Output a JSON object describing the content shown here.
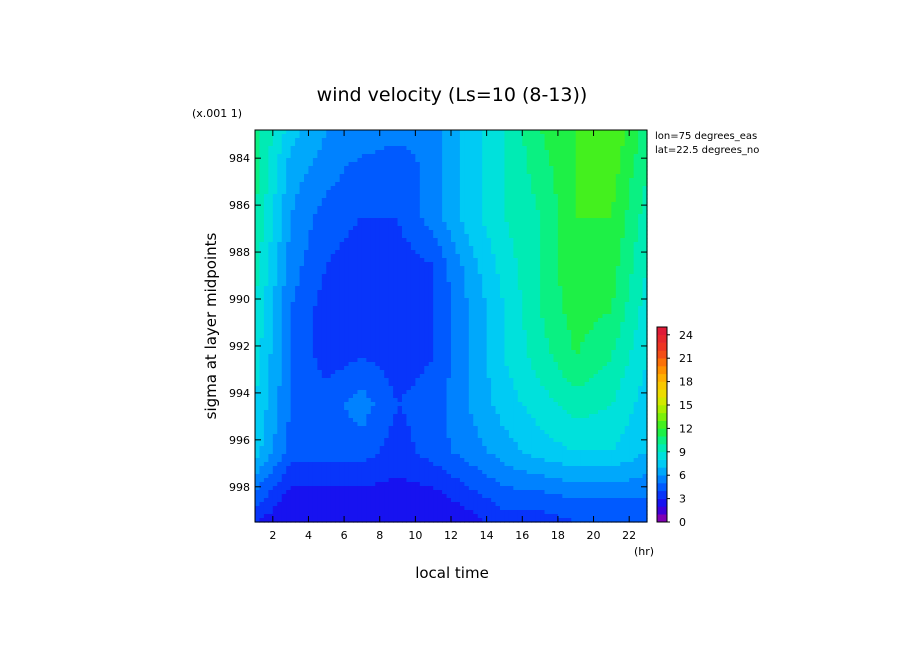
{
  "chart_data": {
    "type": "heatmap",
    "title": "wind velocity (Ls=10 (8-13))",
    "xlabel": "local time",
    "ylabel": "sigma at layer midpoints",
    "x_unit": "(hr)",
    "y_scale_note": "(x.001 1)",
    "annotations": [
      "lon=75 degrees_eas",
      "lat=22.5 degrees_no"
    ],
    "xlim": [
      1,
      23
    ],
    "ylim": [
      999.5,
      982.8
    ],
    "x_ticks": [
      2,
      4,
      6,
      8,
      10,
      12,
      14,
      16,
      18,
      20,
      22
    ],
    "y_ticks": [
      984,
      986,
      988,
      990,
      992,
      994,
      996,
      998
    ],
    "x_tick_labels": [
      "2",
      "4",
      "6",
      "8",
      "10",
      "12",
      "14",
      "16",
      "18",
      "20",
      "22"
    ],
    "y_tick_labels": [
      "984",
      "986",
      "988",
      "990",
      "992",
      "994",
      "996",
      "998"
    ],
    "colorbar": {
      "min": 0,
      "max": 25,
      "step": 1,
      "tick_values": [
        0,
        3,
        6,
        9,
        12,
        15,
        18,
        21,
        24
      ],
      "tick_labels": [
        "0",
        "3",
        "6",
        "9",
        "12",
        "15",
        "18",
        "21",
        "24"
      ]
    },
    "grid_x": [
      1,
      3,
      5,
      7,
      9,
      11,
      13,
      15,
      17,
      19,
      21,
      23
    ],
    "grid_y": [
      982.8,
      984.5,
      986.5,
      988.5,
      990.5,
      992.5,
      994.5,
      996.5,
      997.5,
      998.5,
      999.5
    ],
    "z": [
      [
        10.5,
        7.5,
        6.0,
        6.0,
        5.5,
        5.5,
        7.5,
        9.0,
        11.0,
        12.0,
        13.0,
        10.5
      ],
      [
        10.5,
        6.5,
        5.5,
        4.5,
        4.0,
        5.5,
        7.5,
        9.0,
        10.5,
        12.0,
        12.5,
        10.0
      ],
      [
        10.0,
        6.0,
        4.5,
        4.0,
        4.0,
        5.5,
        7.5,
        9.0,
        10.0,
        12.0,
        12.0,
        9.5
      ],
      [
        9.5,
        5.5,
        4.0,
        3.5,
        3.5,
        4.0,
        6.5,
        8.5,
        10.0,
        12.0,
        11.5,
        9.0
      ],
      [
        9.0,
        5.0,
        3.5,
        3.2,
        3.0,
        4.0,
        6.0,
        8.0,
        10.0,
        11.5,
        11.0,
        8.5
      ],
      [
        8.5,
        5.0,
        3.5,
        4.0,
        3.5,
        4.0,
        6.0,
        8.0,
        9.5,
        11.0,
        10.0,
        8.0
      ],
      [
        8.0,
        5.0,
        4.5,
        5.5,
        4.0,
        4.5,
        6.0,
        7.5,
        8.5,
        9.5,
        9.0,
        7.5
      ],
      [
        7.5,
        4.5,
        4.5,
        4.5,
        3.5,
        4.5,
        5.5,
        6.5,
        7.5,
        8.0,
        8.0,
        7.0
      ],
      [
        6.0,
        3.5,
        3.5,
        3.5,
        3.0,
        3.5,
        4.5,
        5.5,
        6.0,
        6.5,
        6.5,
        6.0
      ],
      [
        4.5,
        2.5,
        2.5,
        2.5,
        2.5,
        2.5,
        3.5,
        4.5,
        4.5,
        5.0,
        5.0,
        5.0
      ],
      [
        3.0,
        2.0,
        2.0,
        2.0,
        2.0,
        2.0,
        2.5,
        3.5,
        3.5,
        4.0,
        4.0,
        4.0
      ]
    ]
  }
}
